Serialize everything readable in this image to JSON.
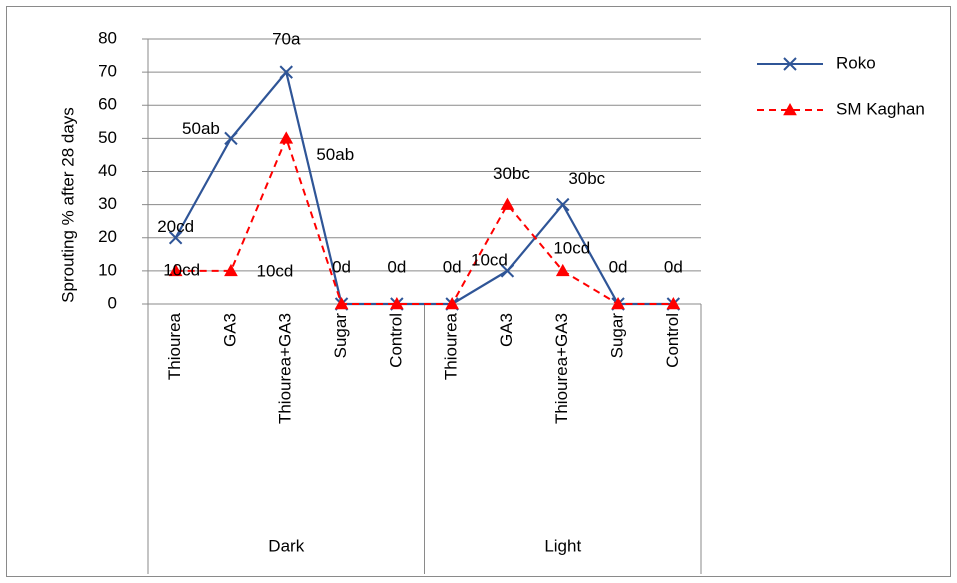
{
  "chart_data": {
    "type": "line",
    "title": "",
    "xlabel": "",
    "ylabel": "Sprouting % after 28 days",
    "ylim": [
      0,
      80
    ],
    "yticks": [
      0,
      10,
      20,
      30,
      40,
      50,
      60,
      70,
      80
    ],
    "grid": true,
    "legend_position": "right",
    "categories": [
      "Thiourea",
      "GA3",
      "Thiourea+GA3",
      "Sugar",
      "Control",
      "Thiourea",
      "GA3",
      "Thiourea+GA3",
      "Sugar",
      "Control"
    ],
    "groups": [
      {
        "label": "Dark",
        "count": 5
      },
      {
        "label": "Light",
        "count": 5
      }
    ],
    "series": [
      {
        "name": "Roko",
        "color": "#2f5597",
        "style": "solid",
        "marker": "x",
        "values": [
          20,
          50,
          70,
          0,
          0,
          0,
          10,
          30,
          0,
          0
        ]
      },
      {
        "name": "SM Kaghan",
        "color": "#ff0000",
        "style": "dashed",
        "marker": "triangle",
        "values": [
          10,
          10,
          50,
          0,
          0,
          0,
          30,
          10,
          0,
          0
        ]
      }
    ],
    "data_labels": [
      {
        "text": "20cd",
        "series": 0,
        "index": 0
      },
      {
        "text": "50ab",
        "series": 0,
        "index": 1
      },
      {
        "text": "70a",
        "series": 0,
        "index": 2
      },
      {
        "text": "30bc",
        "series": 0,
        "index": 7
      },
      {
        "text": "10cd",
        "series": 1,
        "index": 0
      },
      {
        "text": "10cd",
        "series": 1,
        "index": 1
      },
      {
        "text": "50ab",
        "series": 1,
        "index": 2
      },
      {
        "text": "0d",
        "series": 1,
        "index": 3
      },
      {
        "text": "0d",
        "series": 1,
        "index": 4
      },
      {
        "text": "0d",
        "series": 1,
        "index": 5
      },
      {
        "text": "30bc",
        "series": 1,
        "index": 6
      },
      {
        "text": "10cd",
        "series": 0,
        "index": 6
      },
      {
        "text": "10cd",
        "series": 1,
        "index": 7
      },
      {
        "text": "0d",
        "series": 1,
        "index": 8
      },
      {
        "text": "0d",
        "series": 1,
        "index": 9
      }
    ]
  }
}
